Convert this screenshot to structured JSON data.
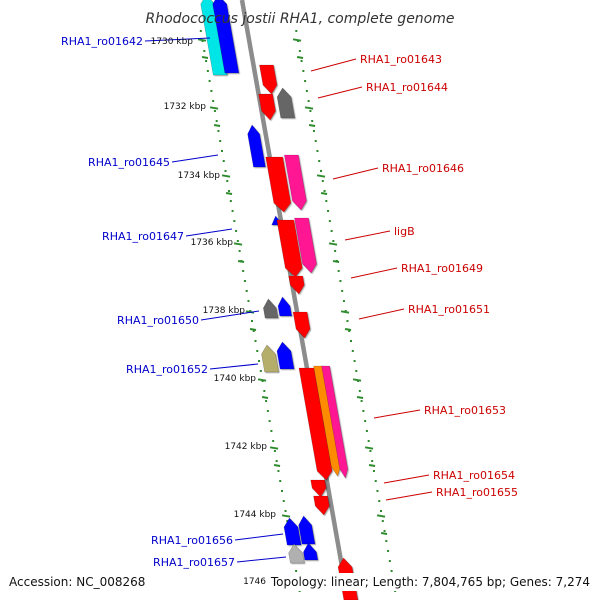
{
  "title": "Rhodococcus jostii RHA1, complete genome",
  "accession": "Accession: NC_008268",
  "summary": "Topology: linear; Length: 7,804,765 bp; Genes: 7,274",
  "colors": {
    "backbone": "#8c8c8c",
    "tick_dots": "#2e8b2e",
    "label_left": "#0000cc",
    "label_right": "#cc0000",
    "gene_red": "#ff0000",
    "gene_blue": "#0000ff",
    "gene_magenta": "#ff1493",
    "gene_orange": "#ff8c00",
    "gene_cyan": "#00e5e5",
    "gene_gray": "#666666",
    "gene_khaki": "#b5ad6a",
    "gene_lightgray": "#b0b0b0"
  },
  "scale": {
    "ticks": [
      {
        "pos": 1730,
        "label": "1730 kbp"
      },
      {
        "pos": 1732,
        "label": "1732 kbp"
      },
      {
        "pos": 1734,
        "label": "1734 kbp"
      },
      {
        "pos": 1736,
        "label": "1736 kbp"
      },
      {
        "pos": 1738,
        "label": "1738 kbp"
      },
      {
        "pos": 1740,
        "label": "1740 kbp"
      },
      {
        "pos": 1742,
        "label": "1742 kbp"
      },
      {
        "pos": 1744,
        "label": "1744 kbp"
      },
      {
        "pos": 1746,
        "label": "1746"
      }
    ]
  },
  "genes_left": [
    {
      "label": "RHA1_ro01642"
    },
    {
      "label": "RHA1_ro01645"
    },
    {
      "label": "RHA1_ro01647"
    },
    {
      "label": "RHA1_ro01650"
    },
    {
      "label": "RHA1_ro01652"
    },
    {
      "label": "RHA1_ro01656"
    },
    {
      "label": "RHA1_ro01657"
    }
  ],
  "genes_right": [
    {
      "label": "RHA1_ro01643"
    },
    {
      "label": "RHA1_ro01644"
    },
    {
      "label": "RHA1_ro01646"
    },
    {
      "label": "ligB"
    },
    {
      "label": "RHA1_ro01649"
    },
    {
      "label": "RHA1_ro01651"
    },
    {
      "label": "RHA1_ro01653"
    },
    {
      "label": "RHA1_ro01654"
    },
    {
      "label": "RHA1_ro01655"
    }
  ]
}
